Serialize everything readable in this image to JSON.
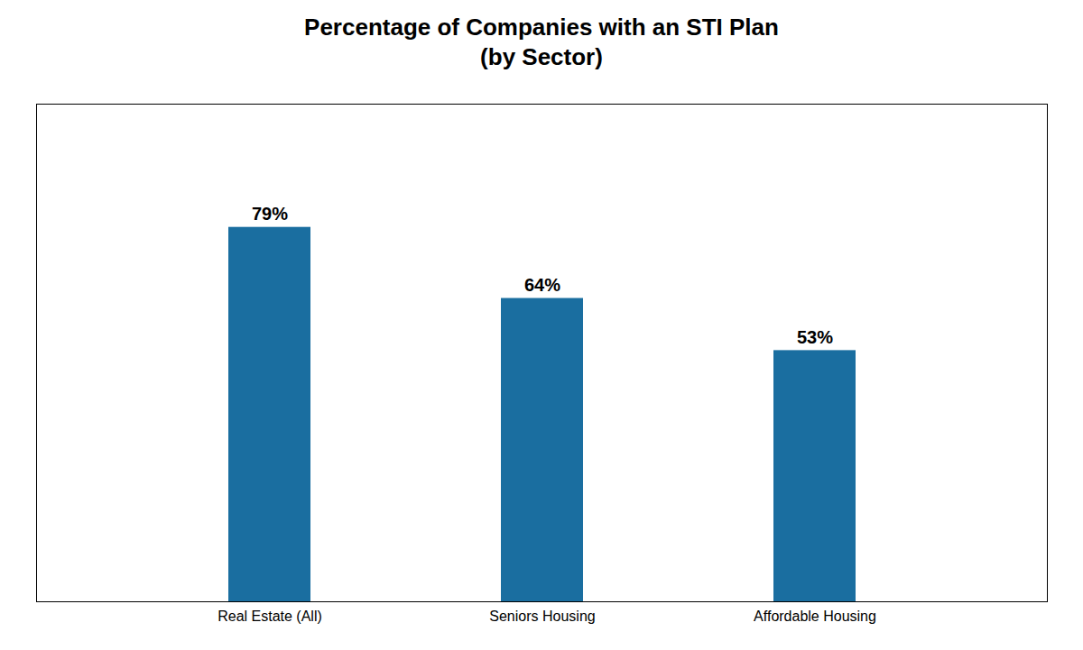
{
  "chart_data": {
    "type": "bar",
    "title": "Percentage of Companies with an STI Plan\n(by Sector)",
    "categories": [
      "Real Estate (All)",
      "Seniors Housing",
      "Affordable Housing"
    ],
    "values": [
      79,
      64,
      53
    ],
    "value_labels": [
      "79%",
      "64%",
      "53%"
    ],
    "color": "#1a6ea0",
    "ylim": [
      0,
      105
    ],
    "yticks": [],
    "data_labels": true,
    "tick_labels": "x",
    "grid": false
  }
}
